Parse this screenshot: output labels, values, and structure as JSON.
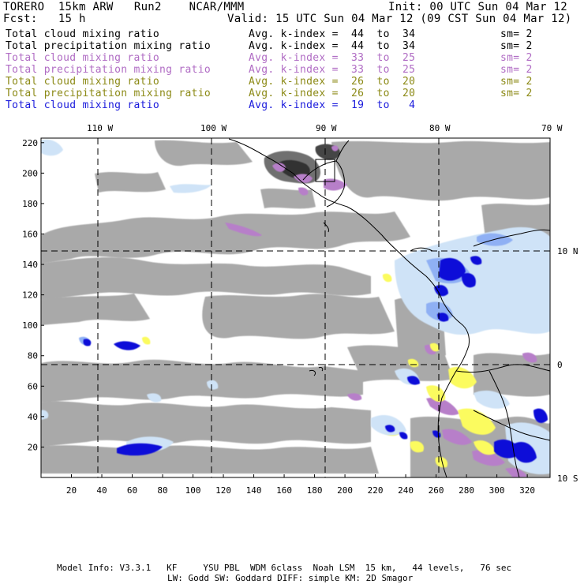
{
  "header": {
    "model": "TORERO  15km ARW   Run2    NCAR/MMM",
    "init": "Init: 00 UTC Sun 04 Mar 12",
    "fcst": "Fcst:   15 h",
    "valid": "Valid: 15 UTC Sun 04 Mar 12 (09 CST Sun 04 Mar 12)"
  },
  "legend": [
    {
      "field": "Total cloud mixing ratio",
      "range": "Avg. k-index =  44  to  34",
      "sm": "sm= 2",
      "color": "#000000"
    },
    {
      "field": "Total precipitation mixing ratio",
      "range": "Avg. k-index =  44  to  34",
      "sm": "sm= 2",
      "color": "#000000"
    },
    {
      "field": "Total cloud mixing ratio",
      "range": "Avg. k-index =  33  to  25",
      "sm": "sm= 2",
      "color": "#b06cc4"
    },
    {
      "field": "Total precipitation mixing ratio",
      "range": "Avg. k-index =  33  to  25",
      "sm": "sm= 2",
      "color": "#b06cc4"
    },
    {
      "field": "Total cloud mixing ratio",
      "range": "Avg. k-index =  26  to  20",
      "sm": "sm= 2",
      "color": "#8c8a16"
    },
    {
      "field": "Total precipitation mixing ratio",
      "range": "Avg. k-index =  26  to  20",
      "sm": "sm= 2",
      "color": "#8c8a16"
    },
    {
      "field": "Total cloud mixing ratio",
      "range": "Avg. k-index =  19  to   4",
      "sm": "",
      "color": "#1a1adc"
    }
  ],
  "axes": {
    "top_lon_labels": [
      "110 W",
      "100 W",
      "90 W",
      "80 W",
      "70 W"
    ],
    "right_lat_labels": [
      "10 N",
      "0",
      "10 S"
    ],
    "left_ticks": [
      "20",
      "40",
      "60",
      "80",
      "100",
      "120",
      "140",
      "160",
      "180",
      "200",
      "220"
    ],
    "bottom_ticks": [
      "20",
      "40",
      "60",
      "80",
      "100",
      "120",
      "140",
      "160",
      "180",
      "200",
      "220",
      "240",
      "260",
      "280",
      "300",
      "320"
    ]
  },
  "footer": {
    "line1": "Model Info: V3.3.1   KF     YSU PBL  WDM 6class  Noah LSM  15 km,   44 levels,   76 sec",
    "line2": "LW: Godd SW: Goddard DIFF: simple KM: 2D Smagor"
  },
  "colors": {
    "cloud_gray": "#a9a9a9",
    "dark_gray": "#555555",
    "magenta_shade": "#b77fc9",
    "yellow_shade": "#fbfb5e",
    "light_blue": "#cfe3f7",
    "mid_blue": "#6b8ef0",
    "deep_blue": "#1010d8"
  }
}
